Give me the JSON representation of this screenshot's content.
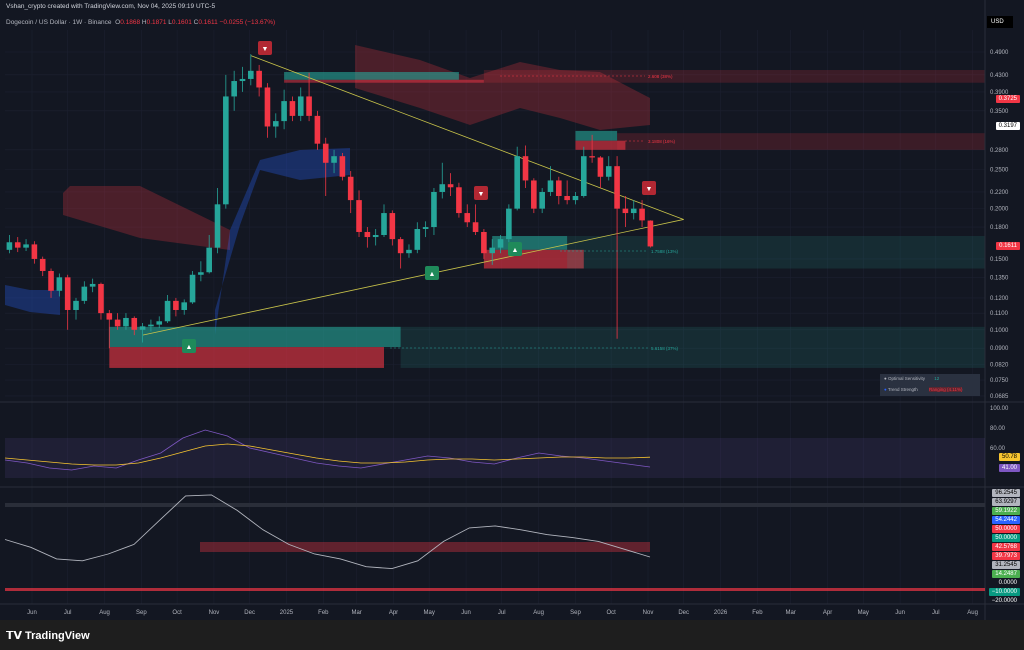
{
  "header": {
    "credit": "Vshan_crypto created with TradingView.com, Nov 04, 2025 09:19 UTC-5",
    "symbol": "Dogecoin / US Dollar · 1W · Binance",
    "o_label": "O",
    "o": "0.1868",
    "h_label": "H",
    "h": "0.1871",
    "l_label": "L",
    "l": "0.1601",
    "c_label": "C",
    "c": "0.1611",
    "change": "−0.0255 (−13.67%)"
  },
  "currency": "USD",
  "price_tags": {
    "last": "0.1611",
    "red": "0.3725",
    "white": "0.3197"
  },
  "colors": {
    "up": "#26a69a",
    "down": "#f23645",
    "background": "#131722",
    "trendline": "#c8c34a"
  },
  "legend": {
    "sensitivity_label": "Optimal Sensitivity",
    "sensitivity_value": "12",
    "trend_label": "Trend Strength",
    "trend_value": "Ranging (4.11%)"
  },
  "annotations": [
    {
      "text": "2.608 (38%)"
    },
    {
      "text": "3.1808 (16%)"
    },
    {
      "text": "1.7588 (13%)"
    },
    {
      "text": "5.6158 (37%)"
    }
  ],
  "rsi_tags": [
    "50.78",
    "41.00"
  ],
  "osc_tags": [
    {
      "v": "96.2545",
      "c": "#b2b5be"
    },
    {
      "v": "63.9297",
      "c": "#b2b5be"
    },
    {
      "v": "59.1922",
      "c": "#4caf50"
    },
    {
      "v": "54.2442",
      "c": "#2962ff"
    },
    {
      "v": "50.0000",
      "c": "#f23645"
    },
    {
      "v": "50.0000",
      "c": "#089981"
    },
    {
      "v": "42.5768",
      "c": "#f23645"
    },
    {
      "v": "39.7973",
      "c": "#f23645"
    },
    {
      "v": "31.2545",
      "c": "#b2b5be"
    },
    {
      "v": "14.2487",
      "c": "#4caf50"
    },
    {
      "v": "0.0000",
      "c": ""
    },
    {
      "v": "−10.0000",
      "c": "#089981"
    },
    {
      "v": "−20.0000",
      "c": ""
    }
  ],
  "footer": {
    "brand": "TradingView"
  },
  "chart_data": {
    "type": "candlestick",
    "title": "Dogecoin / US Dollar · 1W · Binance",
    "yscale": "log",
    "ylim": [
      0.0685,
      0.53
    ],
    "grid": true,
    "yticks": [
      "0.4900",
      "0.4300",
      "0.3900",
      "0.3500",
      "0.2800",
      "0.2500",
      "0.2200",
      "0.2000",
      "0.1800",
      "0.1500",
      "0.1350",
      "0.1200",
      "0.1100",
      "0.1000",
      "0.0900",
      "0.0820",
      "0.0750",
      "0.0685"
    ],
    "ytick_values": [
      0.49,
      0.43,
      0.39,
      0.35,
      0.28,
      0.25,
      0.22,
      0.2,
      0.18,
      0.15,
      0.135,
      0.12,
      0.11,
      0.1,
      0.09,
      0.082,
      0.075,
      0.0685
    ],
    "xticks": [
      [
        "Jun",
        "2024-06-01"
      ],
      [
        "Jul",
        "2024-07-01"
      ],
      [
        "Aug",
        "2024-08-01"
      ],
      [
        "Sep",
        "2024-09-01"
      ],
      [
        "Oct",
        "2024-10-01"
      ],
      [
        "Nov",
        "2024-11-01"
      ],
      [
        "Dec",
        "2024-12-01"
      ],
      [
        "2025",
        "2025-01-01"
      ],
      [
        "Feb",
        "2025-02-01"
      ],
      [
        "Mar",
        "2025-03-01"
      ],
      [
        "Apr",
        "2025-04-01"
      ],
      [
        "May",
        "2025-05-01"
      ],
      [
        "Jun",
        "2025-06-01"
      ],
      [
        "Jul",
        "2025-07-01"
      ],
      [
        "Aug",
        "2025-08-01"
      ],
      [
        "Sep",
        "2025-09-01"
      ],
      [
        "Oct",
        "2025-10-01"
      ],
      [
        "Nov",
        "2025-11-01"
      ],
      [
        "Dec",
        "2025-12-01"
      ],
      [
        "2026",
        "2026-01-01"
      ],
      [
        "Feb",
        "2026-02-01"
      ],
      [
        "Mar",
        "2026-03-01"
      ],
      [
        "Apr",
        "2026-04-01"
      ],
      [
        "May",
        "2026-05-01"
      ],
      [
        "Jun",
        "2026-06-01"
      ],
      [
        "Jul",
        "2026-07-01"
      ],
      [
        "Aug",
        "2026-08-01"
      ]
    ],
    "candles": [
      [
        "2024-05-13",
        0.158,
        0.172,
        0.155,
        0.165
      ],
      [
        "2024-05-20",
        0.165,
        0.17,
        0.156,
        0.16
      ],
      [
        "2024-05-27",
        0.16,
        0.168,
        0.157,
        0.163
      ],
      [
        "2024-06-03",
        0.163,
        0.166,
        0.146,
        0.15
      ],
      [
        "2024-06-10",
        0.15,
        0.152,
        0.136,
        0.14
      ],
      [
        "2024-06-17",
        0.14,
        0.142,
        0.12,
        0.125
      ],
      [
        "2024-06-24",
        0.125,
        0.138,
        0.121,
        0.135
      ],
      [
        "2024-07-01",
        0.135,
        0.137,
        0.1,
        0.112
      ],
      [
        "2024-07-08",
        0.112,
        0.12,
        0.106,
        0.118
      ],
      [
        "2024-07-15",
        0.118,
        0.132,
        0.116,
        0.128
      ],
      [
        "2024-07-22",
        0.128,
        0.134,
        0.124,
        0.13
      ],
      [
        "2024-07-29",
        0.13,
        0.131,
        0.106,
        0.11
      ],
      [
        "2024-08-05",
        0.11,
        0.112,
        0.09,
        0.106
      ],
      [
        "2024-08-12",
        0.106,
        0.11,
        0.1,
        0.102
      ],
      [
        "2024-08-19",
        0.102,
        0.11,
        0.1,
        0.107
      ],
      [
        "2024-08-26",
        0.107,
        0.108,
        0.097,
        0.1
      ],
      [
        "2024-09-02",
        0.1,
        0.104,
        0.093,
        0.102
      ],
      [
        "2024-09-09",
        0.102,
        0.106,
        0.099,
        0.103
      ],
      [
        "2024-09-16",
        0.103,
        0.108,
        0.101,
        0.105
      ],
      [
        "2024-09-23",
        0.105,
        0.122,
        0.104,
        0.118
      ],
      [
        "2024-09-30",
        0.118,
        0.12,
        0.108,
        0.112
      ],
      [
        "2024-10-07",
        0.112,
        0.119,
        0.109,
        0.117
      ],
      [
        "2024-10-14",
        0.117,
        0.14,
        0.116,
        0.137
      ],
      [
        "2024-10-21",
        0.137,
        0.148,
        0.132,
        0.139
      ],
      [
        "2024-10-28",
        0.139,
        0.172,
        0.138,
        0.16
      ],
      [
        "2024-11-04",
        0.16,
        0.225,
        0.155,
        0.205
      ],
      [
        "2024-11-11",
        0.205,
        0.43,
        0.2,
        0.38
      ],
      [
        "2024-11-18",
        0.38,
        0.44,
        0.35,
        0.415
      ],
      [
        "2024-11-25",
        0.415,
        0.45,
        0.39,
        0.42
      ],
      [
        "2024-12-02",
        0.42,
        0.484,
        0.405,
        0.44
      ],
      [
        "2024-12-09",
        0.44,
        0.455,
        0.38,
        0.4
      ],
      [
        "2024-12-16",
        0.4,
        0.41,
        0.3,
        0.32
      ],
      [
        "2024-12-23",
        0.32,
        0.345,
        0.3,
        0.33
      ],
      [
        "2024-12-30",
        0.33,
        0.395,
        0.315,
        0.37
      ],
      [
        "2025-01-06",
        0.37,
        0.38,
        0.33,
        0.34
      ],
      [
        "2025-01-13",
        0.34,
        0.4,
        0.33,
        0.38
      ],
      [
        "2025-01-20",
        0.38,
        0.435,
        0.33,
        0.34
      ],
      [
        "2025-01-27",
        0.34,
        0.35,
        0.28,
        0.29
      ],
      [
        "2025-02-03",
        0.29,
        0.3,
        0.215,
        0.26
      ],
      [
        "2025-02-10",
        0.26,
        0.28,
        0.245,
        0.27
      ],
      [
        "2025-02-17",
        0.27,
        0.275,
        0.235,
        0.24
      ],
      [
        "2025-02-24",
        0.24,
        0.248,
        0.195,
        0.21
      ],
      [
        "2025-03-03",
        0.21,
        0.222,
        0.17,
        0.175
      ],
      [
        "2025-03-10",
        0.175,
        0.18,
        0.16,
        0.17
      ],
      [
        "2025-03-17",
        0.17,
        0.178,
        0.162,
        0.172
      ],
      [
        "2025-03-24",
        0.172,
        0.205,
        0.17,
        0.195
      ],
      [
        "2025-03-31",
        0.195,
        0.198,
        0.162,
        0.168
      ],
      [
        "2025-04-07",
        0.168,
        0.17,
        0.142,
        0.155
      ],
      [
        "2025-04-14",
        0.155,
        0.163,
        0.151,
        0.158
      ],
      [
        "2025-04-21",
        0.158,
        0.185,
        0.155,
        0.178
      ],
      [
        "2025-04-28",
        0.178,
        0.186,
        0.17,
        0.18
      ],
      [
        "2025-05-05",
        0.18,
        0.225,
        0.172,
        0.22
      ],
      [
        "2025-05-12",
        0.22,
        0.26,
        0.212,
        0.23
      ],
      [
        "2025-05-19",
        0.23,
        0.245,
        0.215,
        0.226
      ],
      [
        "2025-05-26",
        0.226,
        0.232,
        0.19,
        0.195
      ],
      [
        "2025-06-02",
        0.195,
        0.205,
        0.18,
        0.185
      ],
      [
        "2025-06-09",
        0.185,
        0.205,
        0.172,
        0.175
      ],
      [
        "2025-06-16",
        0.175,
        0.178,
        0.15,
        0.155
      ],
      [
        "2025-06-23",
        0.155,
        0.168,
        0.145,
        0.16
      ],
      [
        "2025-06-30",
        0.16,
        0.172,
        0.155,
        0.168
      ],
      [
        "2025-07-07",
        0.168,
        0.205,
        0.165,
        0.2
      ],
      [
        "2025-07-14",
        0.2,
        0.285,
        0.198,
        0.27
      ],
      [
        "2025-07-21",
        0.27,
        0.287,
        0.225,
        0.235
      ],
      [
        "2025-07-28",
        0.235,
        0.238,
        0.195,
        0.2
      ],
      [
        "2025-08-04",
        0.2,
        0.225,
        0.195,
        0.22
      ],
      [
        "2025-08-11",
        0.22,
        0.255,
        0.215,
        0.235
      ],
      [
        "2025-08-18",
        0.235,
        0.24,
        0.205,
        0.215
      ],
      [
        "2025-08-25",
        0.215,
        0.235,
        0.205,
        0.21
      ],
      [
        "2025-09-01",
        0.21,
        0.22,
        0.205,
        0.215
      ],
      [
        "2025-09-08",
        0.215,
        0.285,
        0.213,
        0.27
      ],
      [
        "2025-09-15",
        0.27,
        0.305,
        0.26,
        0.268
      ],
      [
        "2025-09-22",
        0.268,
        0.27,
        0.225,
        0.24
      ],
      [
        "2025-09-29",
        0.24,
        0.27,
        0.235,
        0.255
      ],
      [
        "2025-10-06",
        0.255,
        0.27,
        0.095,
        0.2
      ],
      [
        "2025-10-13",
        0.2,
        0.215,
        0.18,
        0.195
      ],
      [
        "2025-10-20",
        0.195,
        0.21,
        0.188,
        0.2
      ],
      [
        "2025-10-27",
        0.2,
        0.21,
        0.18,
        0.187
      ],
      [
        "2025-11-03",
        0.1868,
        0.1871,
        0.1601,
        0.1611
      ]
    ],
    "trendlines": [
      {
        "from": [
          "2024-12-02",
          0.48
        ],
        "to": [
          "2025-12-01",
          0.188
        ]
      },
      {
        "from": [
          "2024-09-02",
          0.097
        ],
        "to": [
          "2025-12-01",
          0.188
        ]
      }
    ],
    "zones": [
      {
        "from": "2024-12-30",
        "to": "2025-05-26",
        "top": 0.437,
        "bottom": 0.418,
        "color": "#26a69a",
        "opacity": 0.6
      },
      {
        "from": "2024-12-30",
        "to": "2025-06-16",
        "top": 0.418,
        "bottom": 0.411,
        "color": "#f23645",
        "opacity": 0.5
      },
      {
        "from": "2025-06-16",
        "to": "2026-09-01",
        "top": 0.442,
        "bottom": 0.411,
        "color": "#f23645",
        "opacity": 0.18
      },
      {
        "from": "2025-09-01",
        "to": "2025-10-06",
        "top": 0.312,
        "bottom": 0.295,
        "color": "#26a69a",
        "opacity": 0.6
      },
      {
        "from": "2025-09-01",
        "to": "2025-10-13",
        "top": 0.295,
        "bottom": 0.28,
        "color": "#f23645",
        "opacity": 0.6
      },
      {
        "from": "2025-10-06",
        "to": "2026-09-01",
        "top": 0.308,
        "bottom": 0.28,
        "color": "#f23645",
        "opacity": 0.18
      },
      {
        "from": "2025-06-23",
        "to": "2025-08-25",
        "top": 0.171,
        "bottom": 0.158,
        "color": "#26a69a",
        "opacity": 0.6
      },
      {
        "from": "2025-06-16",
        "to": "2025-09-08",
        "top": 0.158,
        "bottom": 0.142,
        "color": "#f23645",
        "opacity": 0.6
      },
      {
        "from": "2025-08-25",
        "to": "2026-09-01",
        "top": 0.171,
        "bottom": 0.142,
        "color": "#26a69a",
        "opacity": 0.15
      },
      {
        "from": "2024-08-05",
        "to": "2025-04-07",
        "top": 0.1017,
        "bottom": 0.0906,
        "color": "#26a69a",
        "opacity": 0.6
      },
      {
        "from": "2024-08-05",
        "to": "2025-03-24",
        "top": 0.0906,
        "bottom": 0.0804,
        "color": "#f23645",
        "opacity": 0.6
      },
      {
        "from": "2025-04-07",
        "to": "2026-09-01",
        "top": 0.1017,
        "bottom": 0.0804,
        "color": "#26a69a",
        "opacity": 0.15
      }
    ],
    "rsi": {
      "ylim": [
        0,
        100
      ],
      "yticks": [
        "100.00",
        "80.00",
        "60.00"
      ],
      "line": [
        48,
        45,
        40,
        38,
        42,
        40,
        48,
        55,
        70,
        78,
        72,
        60,
        55,
        50,
        45,
        42,
        40,
        44,
        48,
        52,
        50,
        46,
        44,
        50,
        55,
        52,
        50,
        47,
        44,
        41
      ],
      "ma": [
        50,
        48,
        46,
        44,
        43,
        43,
        45,
        50,
        56,
        62,
        64,
        62,
        58,
        54,
        50,
        47,
        45,
        45,
        46,
        48,
        49,
        49,
        48,
        49,
        50,
        51,
        51,
        50,
        50,
        50.78
      ]
    },
    "oscillator": {
      "line": [
        50,
        42,
        30,
        28,
        35,
        45,
        70,
        95,
        96,
        80,
        60,
        45,
        35,
        30,
        22,
        20,
        28,
        48,
        62,
        64,
        60,
        55,
        52,
        48,
        40,
        32
      ]
    }
  }
}
